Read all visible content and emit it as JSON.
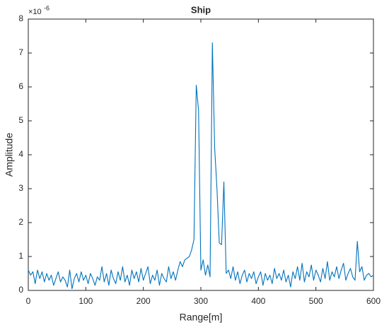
{
  "chart_data": {
    "type": "line",
    "title": "Ship",
    "xlabel": "Range[m]",
    "ylabel": "Amplitude",
    "y_exponent": {
      "base": "×10",
      "power": "-6"
    },
    "xlim": [
      0,
      600
    ],
    "xticks": [
      0,
      100,
      200,
      300,
      400,
      500,
      600
    ],
    "ylim": [
      0,
      8
    ],
    "yticks": [
      0,
      1,
      2,
      3,
      4,
      5,
      6,
      7,
      8
    ],
    "grid": false,
    "x": [
      0,
      4,
      8,
      12,
      16,
      20,
      24,
      28,
      32,
      36,
      40,
      44,
      48,
      52,
      56,
      60,
      64,
      68,
      72,
      76,
      80,
      84,
      88,
      92,
      96,
      100,
      104,
      108,
      112,
      116,
      120,
      124,
      128,
      132,
      136,
      140,
      144,
      148,
      152,
      156,
      160,
      164,
      168,
      172,
      176,
      180,
      184,
      188,
      192,
      196,
      200,
      204,
      208,
      212,
      216,
      220,
      224,
      228,
      232,
      236,
      240,
      244,
      248,
      252,
      256,
      260,
      264,
      268,
      272,
      276,
      280,
      284,
      288,
      292,
      296,
      300,
      304,
      308,
      312,
      316,
      320,
      324,
      328,
      332,
      336,
      340,
      344,
      348,
      352,
      356,
      360,
      364,
      368,
      372,
      376,
      380,
      384,
      388,
      392,
      396,
      400,
      404,
      408,
      412,
      416,
      420,
      424,
      428,
      432,
      436,
      440,
      444,
      448,
      452,
      456,
      460,
      464,
      468,
      472,
      476,
      480,
      484,
      488,
      492,
      496,
      500,
      504,
      508,
      512,
      516,
      520,
      524,
      528,
      532,
      536,
      540,
      544,
      548,
      552,
      556,
      560,
      564,
      568,
      572,
      576,
      580,
      584,
      588,
      592,
      596,
      600
    ],
    "series": [
      {
        "color": "#0072bd",
        "values": [
          0.6,
          0.45,
          0.55,
          0.2,
          0.6,
          0.35,
          0.55,
          0.25,
          0.5,
          0.3,
          0.45,
          0.15,
          0.35,
          0.55,
          0.25,
          0.4,
          0.3,
          0.1,
          0.6,
          0.05,
          0.35,
          0.5,
          0.25,
          0.55,
          0.3,
          0.45,
          0.2,
          0.5,
          0.35,
          0.15,
          0.4,
          0.3,
          0.7,
          0.25,
          0.5,
          0.15,
          0.6,
          0.35,
          0.2,
          0.55,
          0.3,
          0.7,
          0.25,
          0.45,
          0.15,
          0.6,
          0.35,
          0.55,
          0.25,
          0.65,
          0.3,
          0.5,
          0.7,
          0.2,
          0.45,
          0.3,
          0.6,
          0.15,
          0.5,
          0.35,
          0.25,
          0.7,
          0.35,
          0.55,
          0.3,
          0.6,
          0.85,
          0.7,
          0.9,
          0.95,
          1.0,
          1.2,
          1.5,
          6.05,
          5.3,
          0.6,
          0.9,
          0.45,
          0.75,
          0.4,
          7.3,
          4.2,
          3.0,
          1.4,
          1.35,
          3.2,
          0.5,
          0.6,
          0.35,
          0.7,
          0.3,
          0.55,
          0.2,
          0.45,
          0.6,
          0.25,
          0.5,
          0.35,
          0.55,
          0.2,
          0.4,
          0.55,
          0.15,
          0.5,
          0.3,
          0.45,
          0.2,
          0.65,
          0.35,
          0.5,
          0.3,
          0.6,
          0.25,
          0.45,
          0.1,
          0.55,
          0.35,
          0.7,
          0.3,
          0.8,
          0.25,
          0.55,
          0.4,
          0.75,
          0.3,
          0.6,
          0.45,
          0.25,
          0.65,
          0.35,
          0.85,
          0.3,
          0.55,
          0.4,
          0.7,
          0.35,
          0.6,
          0.8,
          0.3,
          0.5,
          0.65,
          0.4,
          0.3,
          1.45,
          0.55,
          0.7,
          0.3,
          0.45,
          0.5,
          0.4,
          0.45
        ]
      }
    ]
  }
}
